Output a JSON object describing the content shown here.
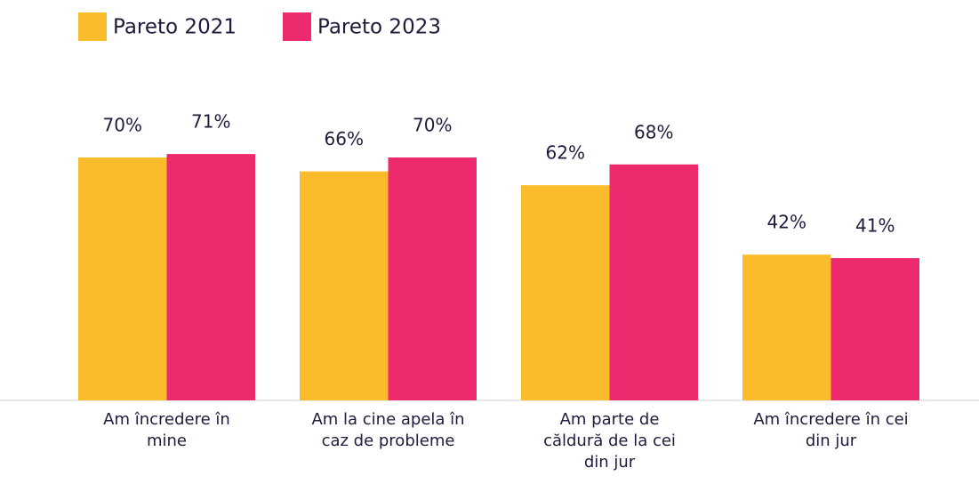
{
  "chart_data": {
    "type": "bar",
    "categories": [
      "Am încredere în mine",
      "Am la cine apela în caz de probleme",
      "Am parte de căldură de la cei din jur",
      "Am încredere în cei din jur"
    ],
    "series": [
      {
        "name": "Pareto 2021",
        "color": "#fbbc2c",
        "values": [
          70,
          66,
          62,
          42
        ],
        "value_labels": [
          "70%",
          "66%",
          "62%",
          "42%"
        ]
      },
      {
        "name": "Pareto 2023",
        "color": "#ee2a6f",
        "values": [
          71,
          70,
          68,
          41
        ],
        "value_labels": [
          "71%",
          "70%",
          "68%",
          "41%"
        ]
      }
    ]
  }
}
